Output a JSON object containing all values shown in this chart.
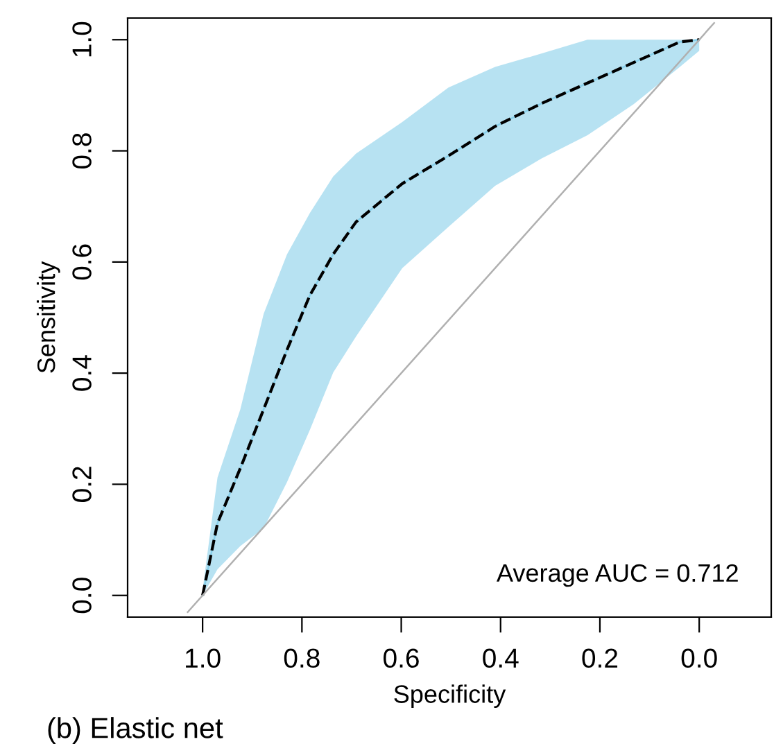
{
  "chart_data": {
    "type": "line",
    "xlabel": "Specificity",
    "ylabel": "Sensitivity",
    "xlim": [
      1.151,
      -0.145
    ],
    "ylim": [
      -0.039,
      1.039
    ],
    "xticks": [
      {
        "value": 1,
        "label": "1.0"
      },
      {
        "value": 0.8,
        "label": "0.8"
      },
      {
        "value": 0.6,
        "label": "0.6"
      },
      {
        "value": 0.4,
        "label": "0.4"
      },
      {
        "value": 0.2,
        "label": "0.2"
      },
      {
        "value": 0,
        "label": "0.0"
      }
    ],
    "yticks": [
      {
        "value": 0,
        "label": "0.0"
      },
      {
        "value": 0.2,
        "label": "0.2"
      },
      {
        "value": 0.4,
        "label": "0.4"
      },
      {
        "value": 0.6,
        "label": "0.6"
      },
      {
        "value": 0.8,
        "label": "0.8"
      },
      {
        "value": 1,
        "label": "1.0"
      }
    ],
    "series": [
      {
        "color": "#87cfea",
        "line_style": "solid",
        "x": [
          1.0,
          0.97,
          0.924,
          0.877,
          0.83,
          0.784,
          0.737,
          0.691,
          0.598,
          0.505,
          0.411,
          0.318,
          0.225,
          0.132,
          0.039,
          0.0
        ],
        "values": [
          0.0,
          0.13,
          0.229,
          0.335,
          0.442,
          0.54,
          0.614,
          0.672,
          0.741,
          0.791,
          0.844,
          0.885,
          0.922,
          0.959,
          0.996,
          1.0
        ],
        "lower": [
          0.0,
          0.047,
          0.089,
          0.121,
          0.204,
          0.298,
          0.401,
          0.466,
          0.589,
          0.663,
          0.737,
          0.786,
          0.828,
          0.884,
          0.951,
          0.98
        ],
        "upper": [
          0.01,
          0.212,
          0.335,
          0.507,
          0.614,
          0.688,
          0.754,
          0.795,
          0.852,
          0.914,
          0.951,
          0.975,
          1.0,
          1.0,
          1.0,
          1.0
        ]
      },
      {
        "color": "#000000",
        "line_style": "dashed",
        "x": [
          1.0,
          0.97,
          0.924,
          0.877,
          0.83,
          0.784,
          0.737,
          0.691,
          0.598,
          0.505,
          0.411,
          0.318,
          0.225,
          0.132,
          0.039,
          0.0
        ],
        "values": [
          0.0,
          0.13,
          0.229,
          0.335,
          0.442,
          0.54,
          0.614,
          0.672,
          0.741,
          0.791,
          0.844,
          0.885,
          0.922,
          0.959,
          0.996,
          1.0
        ]
      },
      {
        "color": "#b0b0b0",
        "line_style": "solid",
        "x": [
          1.03,
          -0.03
        ],
        "values": [
          -0.03,
          1.03
        ]
      }
    ],
    "annotations": [
      "Average AUC = 0.712",
      "(b) Elastic net"
    ]
  }
}
